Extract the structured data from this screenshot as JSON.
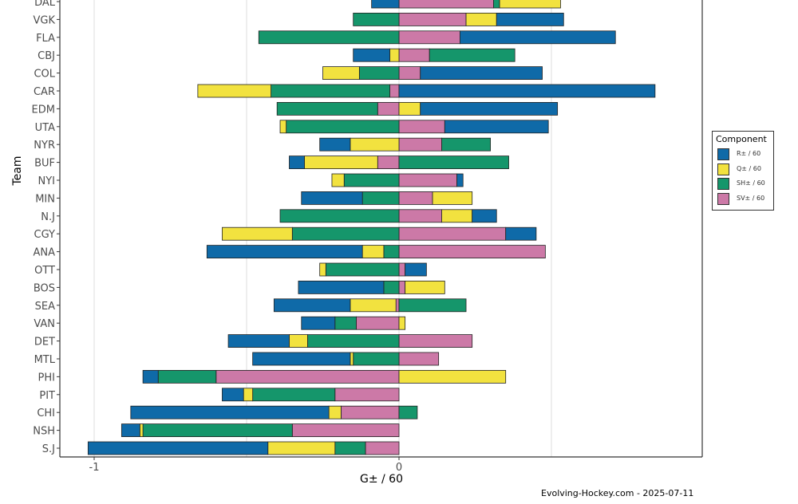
{
  "chart_data": {
    "type": "bar",
    "orientation": "horizontal",
    "stacked": true,
    "xlabel": "G± / 60",
    "ylabel": "Team",
    "xlim": [
      -1.02,
      0.98
    ],
    "x_ticks": [
      -1,
      0
    ],
    "grid": true,
    "legend_title": "Component",
    "legend_position": "right",
    "caption": "Evolving-Hockey.com - 2025-07-11",
    "colors": {
      "R": "#0f6aa8",
      "Q": "#f2e23f",
      "SH": "#15966b",
      "SV": "#cc79a7"
    },
    "series": [
      {
        "name": "R± / 60",
        "key": "R"
      },
      {
        "name": "Q± / 60",
        "key": "Q"
      },
      {
        "name": "SH± / 60",
        "key": "SH"
      },
      {
        "name": "SV± / 60",
        "key": "SV"
      }
    ],
    "teams": [
      {
        "team": "DAL",
        "SV": 0.31,
        "SH": 0.02,
        "Q": 0.2,
        "R": -0.09
      },
      {
        "team": "VGK",
        "SV": 0.22,
        "Q": 0.1,
        "R": 0.22,
        "SH": -0.15
      },
      {
        "team": "FLA",
        "SV": 0.2,
        "R": 0.51,
        "SH": -0.46
      },
      {
        "team": "CBJ",
        "SV": 0.1,
        "SH": 0.28,
        "Q": -0.03,
        "R": -0.12
      },
      {
        "team": "COL",
        "SV": 0.07,
        "R": 0.4,
        "SH": -0.13,
        "Q": -0.12
      },
      {
        "team": "CAR",
        "R": 0.84,
        "SV": -0.03,
        "SH": -0.39,
        "Q": -0.24
      },
      {
        "team": "EDM",
        "Q": 0.07,
        "R": 0.45,
        "SV": -0.07,
        "SH": -0.33
      },
      {
        "team": "UTA",
        "SV": 0.15,
        "R": 0.34,
        "SH": -0.37,
        "Q": -0.02
      },
      {
        "team": "NYR",
        "SV": 0.14,
        "SH": 0.16,
        "Q": -0.16,
        "R": -0.1
      },
      {
        "team": "BUF",
        "SH": 0.36,
        "SV": -0.07,
        "Q": -0.24,
        "R": -0.05
      },
      {
        "team": "NYI",
        "SV": 0.19,
        "R": 0.02,
        "SH": -0.18,
        "Q": -0.04
      },
      {
        "team": "MIN",
        "SV": 0.11,
        "Q": 0.13,
        "SH": -0.12,
        "R": -0.2
      },
      {
        "team": "N.J",
        "SV": 0.14,
        "Q": 0.1,
        "R": 0.08,
        "SH": -0.39
      },
      {
        "team": "CGY",
        "SV": 0.35,
        "R": 0.1,
        "SH": -0.35,
        "Q": -0.23
      },
      {
        "team": "ANA",
        "SV": 0.48,
        "SH": -0.05,
        "Q": -0.07,
        "R": -0.51
      },
      {
        "team": "OTT",
        "SV": 0.02,
        "R": 0.07,
        "SH": -0.24,
        "Q": -0.02
      },
      {
        "team": "BOS",
        "SV": 0.02,
        "Q": 0.13,
        "SH": -0.05,
        "R": -0.28
      },
      {
        "team": "SEA",
        "SH": 0.22,
        "SV": -0.01,
        "Q": -0.15,
        "R": -0.25
      },
      {
        "team": "VAN",
        "Q": 0.02,
        "SV": -0.14,
        "SH": -0.07,
        "R": -0.11
      },
      {
        "team": "DET",
        "SV": 0.24,
        "SH": -0.3,
        "Q": -0.06,
        "R": -0.2
      },
      {
        "team": "MTL",
        "SV": 0.13,
        "SH": -0.15,
        "Q": -0.01,
        "R": -0.32
      },
      {
        "team": "PHI",
        "Q": 0.35,
        "SV": -0.6,
        "SH": -0.19,
        "R": -0.05
      },
      {
        "team": "PIT",
        "SV": -0.21,
        "SH": -0.27,
        "Q": -0.03,
        "R": -0.07
      },
      {
        "team": "CHI",
        "SH": 0.06,
        "SV": -0.19,
        "Q": -0.04,
        "R": -0.65
      },
      {
        "team": "NSH",
        "SV": -0.35,
        "SH": -0.49,
        "Q": -0.01,
        "R": -0.06
      },
      {
        "team": "S.J",
        "SV": -0.11,
        "SH": -0.1,
        "Q": -0.22,
        "R": -0.59
      }
    ]
  }
}
